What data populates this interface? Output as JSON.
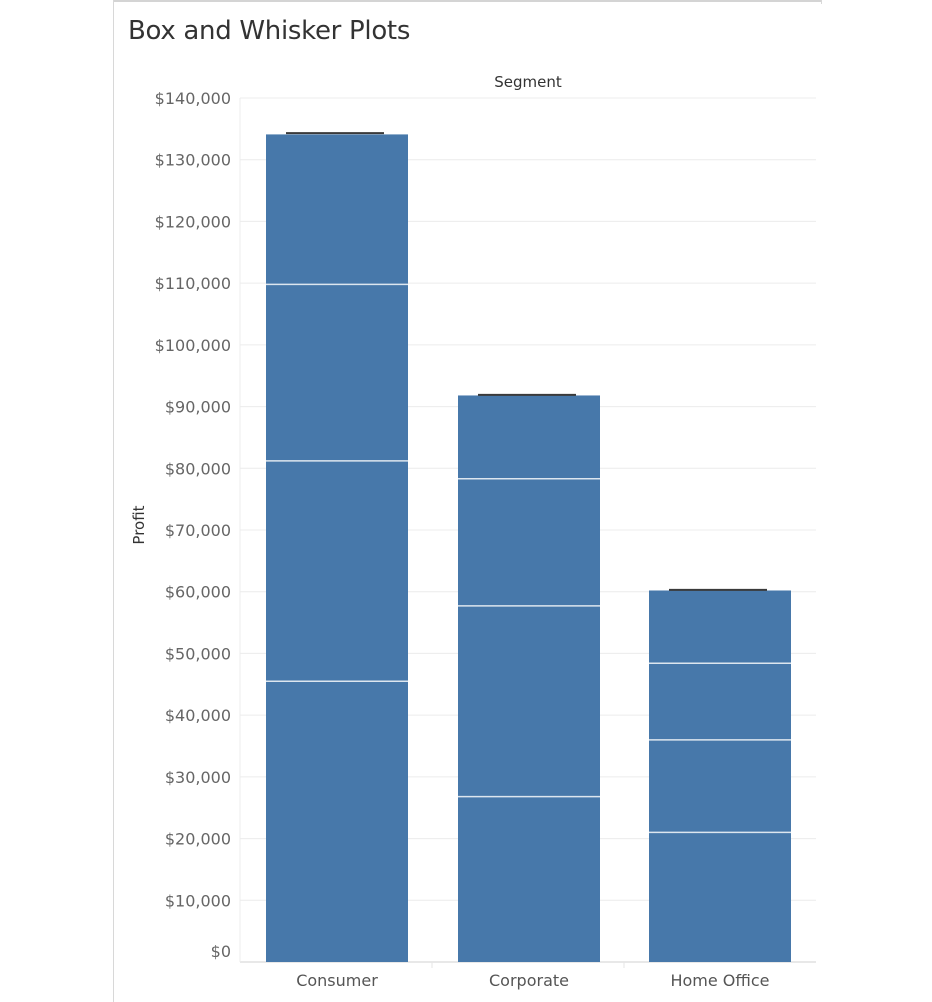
{
  "title": "Box and Whisker Plots",
  "chart_data": {
    "type": "bar",
    "stacked": true,
    "column_header": "Segment",
    "ylabel": "Profit",
    "ylim": [
      0,
      140000
    ],
    "y_ticks": [
      0,
      10000,
      20000,
      30000,
      40000,
      50000,
      60000,
      70000,
      80000,
      90000,
      100000,
      110000,
      120000,
      130000,
      140000
    ],
    "y_tick_labels": [
      "$0",
      "$10,000",
      "$20,000",
      "$30,000",
      "$40,000",
      "$50,000",
      "$60,000",
      "$70,000",
      "$80,000",
      "$90,000",
      "$100,000",
      "$110,000",
      "$120,000",
      "$130,000",
      "$140,000"
    ],
    "categories": [
      "Consumer",
      "Corporate",
      "Home Office"
    ],
    "bars": [
      {
        "category": "Consumer",
        "total": 134100,
        "segment_boundaries": [
          45500,
          81200,
          109800
        ],
        "whisker": 134300
      },
      {
        "category": "Corporate",
        "total": 91800,
        "segment_boundaries": [
          26800,
          57700,
          78300
        ],
        "whisker": 91900
      },
      {
        "category": "Home Office",
        "total": 60200,
        "segment_boundaries": [
          21000,
          36000,
          48400
        ],
        "whisker": 60300
      }
    ],
    "bar_color": "#4778aa",
    "divider_color": "#dde6ef",
    "whisker_color": "#3a3a3a",
    "gridlines": true
  }
}
